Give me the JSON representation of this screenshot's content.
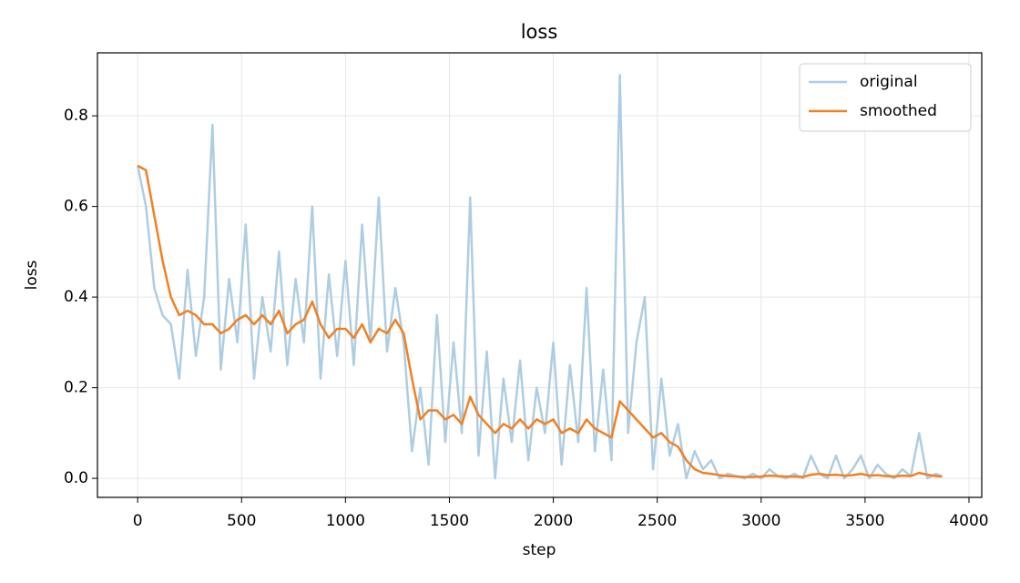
{
  "chart_data": {
    "type": "line",
    "title": "loss",
    "xlabel": "step",
    "ylabel": "loss",
    "x": [
      0,
      40,
      80,
      120,
      160,
      200,
      240,
      280,
      320,
      360,
      400,
      440,
      480,
      520,
      560,
      600,
      640,
      680,
      720,
      760,
      800,
      840,
      880,
      920,
      960,
      1000,
      1040,
      1080,
      1120,
      1160,
      1200,
      1240,
      1280,
      1320,
      1360,
      1400,
      1440,
      1480,
      1520,
      1560,
      1600,
      1640,
      1680,
      1720,
      1760,
      1800,
      1840,
      1880,
      1920,
      1960,
      2000,
      2040,
      2080,
      2120,
      2160,
      2200,
      2240,
      2280,
      2320,
      2360,
      2400,
      2440,
      2480,
      2520,
      2560,
      2600,
      2640,
      2680,
      2720,
      2760,
      2800,
      2840,
      2880,
      2920,
      2960,
      3000,
      3040,
      3080,
      3120,
      3160,
      3200,
      3240,
      3280,
      3320,
      3360,
      3400,
      3440,
      3480,
      3520,
      3560,
      3600,
      3640,
      3680,
      3720,
      3760,
      3800,
      3840,
      3870
    ],
    "series": [
      {
        "name": "original",
        "color": "#aecde3",
        "values": [
          0.69,
          0.6,
          0.42,
          0.36,
          0.34,
          0.22,
          0.46,
          0.27,
          0.4,
          0.78,
          0.24,
          0.44,
          0.3,
          0.56,
          0.22,
          0.4,
          0.28,
          0.5,
          0.25,
          0.44,
          0.3,
          0.6,
          0.22,
          0.45,
          0.27,
          0.48,
          0.25,
          0.56,
          0.3,
          0.62,
          0.28,
          0.42,
          0.3,
          0.06,
          0.2,
          0.03,
          0.36,
          0.08,
          0.3,
          0.1,
          0.62,
          0.05,
          0.28,
          0.0,
          0.22,
          0.08,
          0.26,
          0.04,
          0.2,
          0.1,
          0.3,
          0.03,
          0.25,
          0.08,
          0.42,
          0.06,
          0.24,
          0.04,
          0.89,
          0.1,
          0.3,
          0.4,
          0.02,
          0.22,
          0.05,
          0.12,
          0.0,
          0.06,
          0.02,
          0.04,
          0.0,
          0.01,
          0.005,
          0.0,
          0.01,
          0.0,
          0.02,
          0.005,
          0.0,
          0.01,
          0.0,
          0.05,
          0.01,
          0.0,
          0.05,
          0.0,
          0.02,
          0.05,
          0.0,
          0.03,
          0.01,
          0.0,
          0.02,
          0.005,
          0.1,
          0.0,
          0.01,
          0.005
        ]
      },
      {
        "name": "smoothed",
        "color": "#f28022",
        "values": [
          0.69,
          0.68,
          0.58,
          0.48,
          0.4,
          0.36,
          0.37,
          0.36,
          0.34,
          0.34,
          0.32,
          0.33,
          0.35,
          0.36,
          0.34,
          0.36,
          0.34,
          0.37,
          0.32,
          0.34,
          0.35,
          0.39,
          0.34,
          0.31,
          0.33,
          0.33,
          0.31,
          0.34,
          0.3,
          0.33,
          0.32,
          0.35,
          0.32,
          0.22,
          0.13,
          0.15,
          0.15,
          0.13,
          0.14,
          0.12,
          0.18,
          0.14,
          0.12,
          0.1,
          0.12,
          0.11,
          0.13,
          0.11,
          0.13,
          0.12,
          0.13,
          0.1,
          0.11,
          0.1,
          0.13,
          0.11,
          0.1,
          0.09,
          0.17,
          0.15,
          0.13,
          0.11,
          0.09,
          0.1,
          0.08,
          0.07,
          0.04,
          0.02,
          0.012,
          0.01,
          0.007,
          0.005,
          0.004,
          0.003,
          0.003,
          0.004,
          0.006,
          0.005,
          0.004,
          0.004,
          0.003,
          0.008,
          0.01,
          0.007,
          0.008,
          0.006,
          0.007,
          0.01,
          0.006,
          0.007,
          0.005,
          0.004,
          0.006,
          0.005,
          0.012,
          0.008,
          0.005,
          0.004
        ]
      }
    ],
    "xlim": [
      -193.5,
      4061.5
    ],
    "ylim": [
      -0.042,
      0.939
    ],
    "xticks": [
      0,
      500,
      1000,
      1500,
      2000,
      2500,
      3000,
      3500,
      4000
    ],
    "yticks": [
      {
        "value": 0,
        "label": "0.0"
      },
      0.2,
      0.4,
      0.6,
      0.8
    ],
    "grid": true,
    "legend": "upper right"
  }
}
